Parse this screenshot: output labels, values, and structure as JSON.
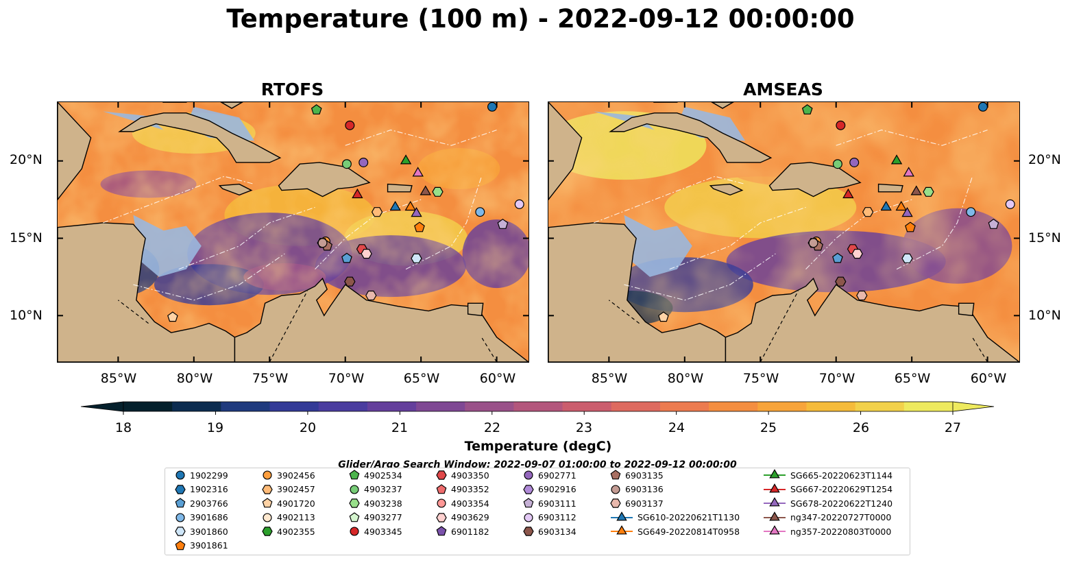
{
  "title": "Temperature (100 m) - 2022-09-12 00:00:00",
  "panels": [
    {
      "title": "RTOFS"
    },
    {
      "title": "AMSEAS"
    }
  ],
  "map_axes": {
    "lon_range": [
      -89.0,
      -57.9
    ],
    "lat_range": [
      7.0,
      23.8
    ],
    "lon_ticks": [
      "85°W",
      "80°W",
      "75°W",
      "70°W",
      "65°W",
      "60°W"
    ],
    "lon_tick_values": [
      -85,
      -80,
      -75,
      -70,
      -65,
      -60
    ],
    "lat_ticks": [
      "20°N",
      "15°N",
      "10°N"
    ],
    "lat_tick_values": [
      20,
      15,
      10
    ]
  },
  "colors": {
    "land": "#cfb38b",
    "shallow_water": "#9ab7de",
    "colormap": [
      "#04202c",
      "#0c2c50",
      "#1f3a7e",
      "#333a97",
      "#4a3c9f",
      "#643f9c",
      "#7f4894",
      "#9a5189",
      "#b3567c",
      "#cb5d6d",
      "#de6a5f",
      "#ec7b4f",
      "#f48e40",
      "#f7a43a",
      "#f5bb3a",
      "#f2d14a",
      "#eeea5e"
    ]
  },
  "chart_data": {
    "type": "heatmap",
    "title": "Temperature (100 m) - 2022-09-12 00:00:00",
    "panels": [
      "RTOFS",
      "AMSEAS"
    ],
    "colorbar": {
      "label": "Temperature (degC)",
      "range": [
        18,
        27
      ],
      "ticks": [
        "18",
        "19",
        "20",
        "21",
        "22",
        "23",
        "24",
        "25",
        "26",
        "27"
      ],
      "tick_values": [
        18,
        19,
        20,
        21,
        22,
        23,
        24,
        25,
        26,
        27
      ],
      "extend": "both"
    },
    "search_window": "Glider/Argo Search Window: 2022-09-07 01:00:00 to 2022-09-12 00:00:00",
    "platforms": [
      {
        "name": "1902299",
        "marker": "circle",
        "color": "#1f77b4",
        "lon": -60.3,
        "lat": 23.5
      },
      {
        "name": "1902316",
        "marker": "hexagon",
        "color": "#1f77b4"
      },
      {
        "name": "2903766",
        "marker": "pentagon",
        "color": "#5a9fd4",
        "lon": -69.9,
        "lat": 13.7
      },
      {
        "name": "3901686",
        "marker": "circle",
        "color": "#7fb8e8",
        "lon": -61.1,
        "lat": 16.7
      },
      {
        "name": "3901860",
        "marker": "hexagon",
        "color": "#cfe6f8",
        "lon": -65.3,
        "lat": 13.7
      },
      {
        "name": "3901861",
        "marker": "pentagon",
        "color": "#ff7f0e",
        "lon": -65.1,
        "lat": 15.7
      },
      {
        "name": "3902456",
        "marker": "circle",
        "color": "#ff9f3e",
        "lon": -71.3,
        "lat": 14.8
      },
      {
        "name": "3902457",
        "marker": "hexagon",
        "color": "#ffbb78",
        "lon": -67.9,
        "lat": 16.7
      },
      {
        "name": "4901720",
        "marker": "pentagon",
        "color": "#ffd3a6",
        "lon": -81.4,
        "lat": 9.9
      },
      {
        "name": "4902113",
        "marker": "circle",
        "color": "#ffe9d0"
      },
      {
        "name": "4902355",
        "marker": "hexagon",
        "color": "#2ca02c"
      },
      {
        "name": "4902534",
        "marker": "pentagon",
        "color": "#4cb44c",
        "lon": -71.9,
        "lat": 23.3
      },
      {
        "name": "4903237",
        "marker": "circle",
        "color": "#77cc77",
        "lon": -69.9,
        "lat": 19.8
      },
      {
        "name": "4903238",
        "marker": "hexagon",
        "color": "#98df8a",
        "lon": -63.9,
        "lat": 18.0
      },
      {
        "name": "4903277",
        "marker": "pentagon",
        "color": "#d5f5cf"
      },
      {
        "name": "4903345",
        "marker": "circle",
        "color": "#d62728",
        "lon": -69.7,
        "lat": 22.3
      },
      {
        "name": "4903350",
        "marker": "hexagon",
        "color": "#e0484a",
        "lon": -68.9,
        "lat": 14.3
      },
      {
        "name": "4903352",
        "marker": "pentagon",
        "color": "#ee6c6d"
      },
      {
        "name": "4903354",
        "marker": "circle",
        "color": "#ff9896"
      },
      {
        "name": "4903629",
        "marker": "hexagon",
        "color": "#ffd1d0",
        "lon": -68.6,
        "lat": 14.0
      },
      {
        "name": "6901182",
        "marker": "pentagon",
        "color": "#7b52ab"
      },
      {
        "name": "6902771",
        "marker": "circle",
        "color": "#9467bd",
        "lon": -68.8,
        "lat": 19.9
      },
      {
        "name": "6902916",
        "marker": "hexagon",
        "color": "#b08ad8",
        "lon": -71.5,
        "lat": 14.7
      },
      {
        "name": "6903111",
        "marker": "pentagon",
        "color": "#c5b0d5",
        "lon": -59.6,
        "lat": 15.9
      },
      {
        "name": "6903112",
        "marker": "circle",
        "color": "#e3c9f5",
        "lon": -58.5,
        "lat": 17.2
      },
      {
        "name": "6903134",
        "marker": "hexagon",
        "color": "#8c564b",
        "lon": -69.7,
        "lat": 12.2
      },
      {
        "name": "6903135",
        "marker": "pentagon",
        "color": "#a86f62",
        "lon": -71.2,
        "lat": 14.5
      },
      {
        "name": "6903136",
        "marker": "circle",
        "color": "#c49c94",
        "lon": -71.5,
        "lat": 14.7
      },
      {
        "name": "6903137",
        "marker": "hexagon",
        "color": "#e8b8ac",
        "lon": -68.3,
        "lat": 11.3
      },
      {
        "name": "SG610-20220621T1130",
        "marker": "triangle",
        "color": "#1f77b4",
        "line": true,
        "lon": -66.7,
        "lat": 17.0
      },
      {
        "name": "SG649-20220814T0958",
        "marker": "triangle",
        "color": "#ff7f0e",
        "line": true,
        "lon": -65.7,
        "lat": 17.0
      },
      {
        "name": "SG665-20220623T1144",
        "marker": "triangle",
        "color": "#2ca02c",
        "line": true,
        "lon": -66.0,
        "lat": 20.0
      },
      {
        "name": "SG667-20220629T1254",
        "marker": "triangle",
        "color": "#d62728",
        "line": true,
        "lon": -69.2,
        "lat": 17.8
      },
      {
        "name": "SG678-20220622T1240",
        "marker": "triangle",
        "color": "#9467bd",
        "line": true,
        "lon": -65.3,
        "lat": 16.6
      },
      {
        "name": "ng347-20220727T0000",
        "marker": "triangle",
        "color": "#8c564b",
        "line": true,
        "lon": -64.7,
        "lat": 18.0
      },
      {
        "name": "ng357-20220803T0000",
        "marker": "triangle",
        "color": "#e377c2",
        "line": true,
        "lon": -65.2,
        "lat": 19.2
      }
    ]
  }
}
